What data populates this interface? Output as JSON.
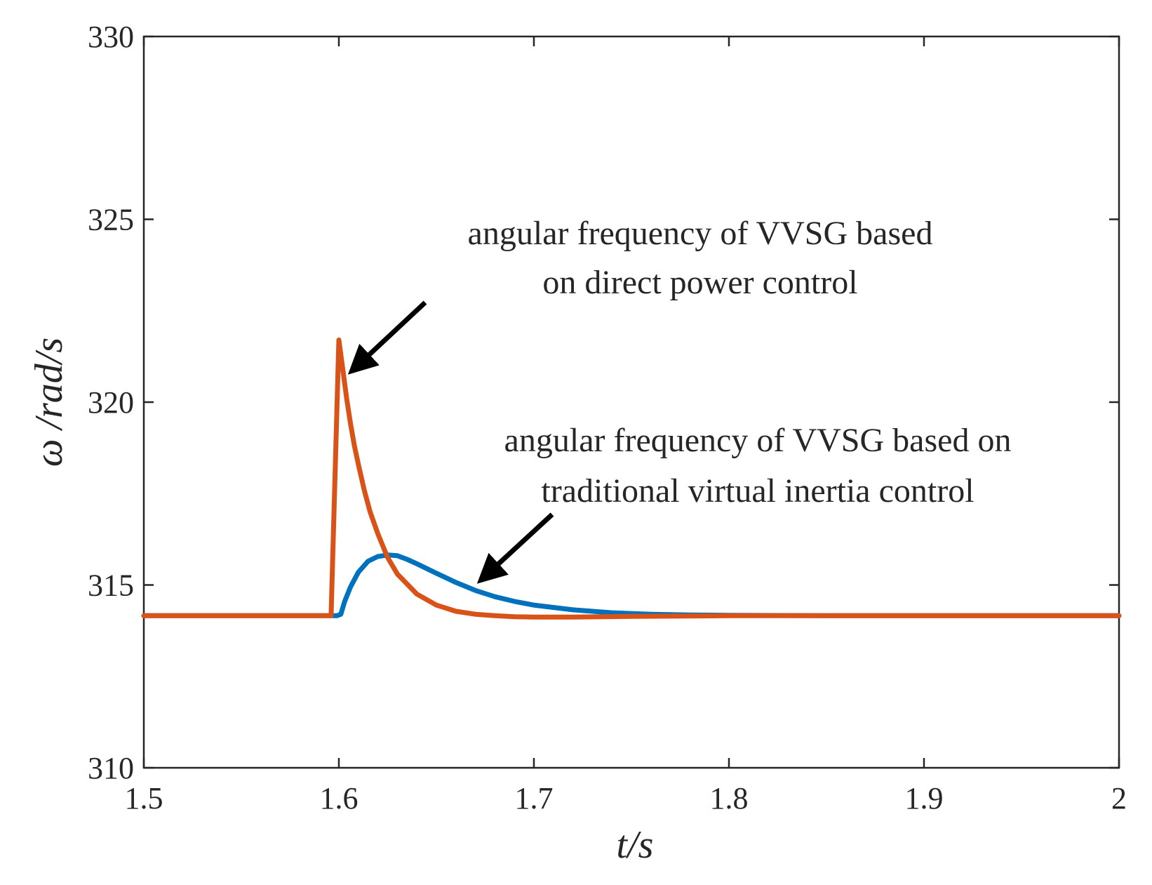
{
  "chart_data": {
    "type": "line",
    "title": "",
    "xlabel": "t/s",
    "ylabel": "ω /rad/s",
    "xlim": [
      1.5,
      2.0
    ],
    "ylim": [
      310,
      330
    ],
    "xticks": [
      1.5,
      1.6,
      1.7,
      1.8,
      1.9,
      2.0
    ],
    "xtick_labels": [
      "1.5",
      "1.6",
      "1.7",
      "1.8",
      "1.9",
      "2"
    ],
    "yticks": [
      310,
      315,
      320,
      325,
      330
    ],
    "ytick_labels": [
      "310",
      "315",
      "320",
      "325",
      "330"
    ],
    "grid": false,
    "series": [
      {
        "name": "traditional virtual inertia control",
        "color": "#0072BD",
        "x": [
          1.5,
          1.599,
          1.601,
          1.603,
          1.606,
          1.61,
          1.615,
          1.62,
          1.625,
          1.63,
          1.635,
          1.64,
          1.65,
          1.66,
          1.67,
          1.68,
          1.69,
          1.7,
          1.72,
          1.74,
          1.76,
          1.78,
          1.8,
          1.85,
          1.9,
          2.0
        ],
        "y": [
          314.16,
          314.16,
          314.2,
          314.55,
          314.95,
          315.35,
          315.65,
          315.78,
          315.82,
          315.8,
          315.7,
          315.58,
          315.32,
          315.07,
          314.85,
          314.68,
          314.55,
          314.45,
          314.32,
          314.24,
          314.2,
          314.18,
          314.17,
          314.16,
          314.16,
          314.16
        ]
      },
      {
        "name": "direct power control",
        "color": "#D95319",
        "x": [
          1.5,
          1.596,
          1.6,
          1.602,
          1.604,
          1.606,
          1.608,
          1.61,
          1.613,
          1.616,
          1.62,
          1.625,
          1.63,
          1.64,
          1.65,
          1.66,
          1.67,
          1.68,
          1.69,
          1.7,
          1.72,
          1.75,
          1.8,
          1.9,
          2.0
        ],
        "y": [
          314.16,
          314.16,
          321.7,
          320.9,
          320.1,
          319.4,
          318.8,
          318.3,
          317.6,
          317.0,
          316.4,
          315.75,
          315.3,
          314.75,
          314.45,
          314.28,
          314.2,
          314.16,
          314.13,
          314.12,
          314.12,
          314.14,
          314.16,
          314.16,
          314.16
        ]
      }
    ],
    "annotations": [
      {
        "target_series": "direct power control",
        "lines": [
          "angular frequency of VVSG based",
          "on direct power control"
        ]
      },
      {
        "target_series": "traditional virtual inertia control",
        "lines": [
          "angular frequency of VVSG based on",
          "traditional virtual inertia control"
        ]
      }
    ]
  }
}
